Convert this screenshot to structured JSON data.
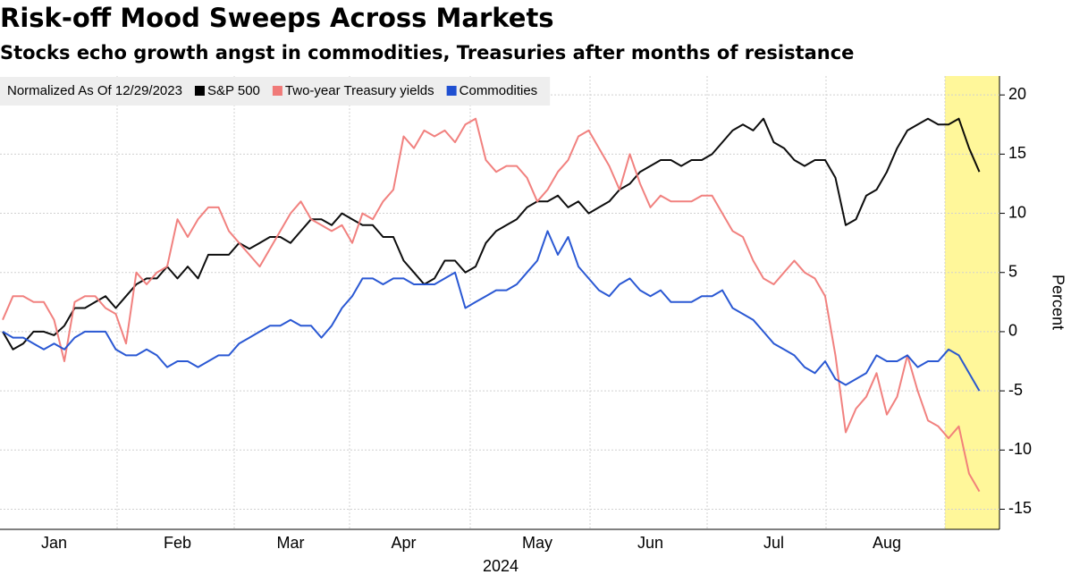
{
  "chart_data": {
    "type": "line",
    "title": "Risk-off Mood Sweeps Across Markets",
    "subtitle": "Stocks echo growth angst in commodities, Treasuries after months of resistance",
    "legend_title": "Normalized As Of 12/29/2023",
    "x_label": "2024",
    "y_label": "Percent",
    "legend": "upper left",
    "grid": true,
    "categories": [
      null,
      null,
      null,
      null,
      null,
      "Jan",
      null,
      null,
      null,
      null,
      null,
      null,
      null,
      null,
      null,
      null,
      null,
      "Feb",
      null,
      null,
      null,
      null,
      null,
      null,
      null,
      null,
      null,
      null,
      "Mar",
      null,
      null,
      null,
      null,
      null,
      null,
      null,
      null,
      null,
      null,
      "Apr",
      null,
      null,
      null,
      null,
      null,
      null,
      null,
      null,
      null,
      null,
      null,
      null,
      "May",
      null,
      null,
      null,
      null,
      null,
      null,
      null,
      null,
      null,
      null,
      "Jun",
      null,
      null,
      null,
      null,
      null,
      null,
      null,
      null,
      null,
      null,
      null,
      "Jul",
      null,
      null,
      null,
      null,
      null,
      null,
      null,
      null,
      null,
      null,
      "Aug",
      null,
      null,
      null,
      null,
      null,
      null,
      null,
      null,
      null
    ],
    "ylim": [
      -16.7,
      21.6
    ],
    "yticks": [
      -15,
      -10,
      -5,
      0,
      5,
      10,
      15,
      20
    ],
    "series": [
      {
        "name": "S&P 500",
        "color": "#000000",
        "values": [
          0,
          -1.5,
          -1,
          0,
          0,
          -0.3,
          0.5,
          2,
          2,
          2.5,
          3,
          2,
          3,
          4,
          4.5,
          4.5,
          5.5,
          4.5,
          5.5,
          4.5,
          6.5,
          6.5,
          6.5,
          7.5,
          7,
          7.5,
          8,
          8,
          7.5,
          8.5,
          9.5,
          9.5,
          9,
          10,
          9.5,
          9,
          9,
          8,
          8,
          6,
          5,
          4,
          4.5,
          6,
          6,
          5,
          5.5,
          7.5,
          8.5,
          9,
          9.5,
          10.5,
          11,
          11,
          11.5,
          10.5,
          11,
          10,
          10.5,
          11,
          12,
          12.5,
          13.5,
          14,
          14.5,
          14.5,
          14,
          14.5,
          14.5,
          15,
          16,
          17,
          17.5,
          17,
          18,
          16,
          15.5,
          14.5,
          14,
          14.5,
          14.5,
          13,
          9,
          9.5,
          11.5,
          12,
          13.5,
          15.5,
          17,
          17.5,
          18,
          17.5,
          17.5,
          18,
          15.5,
          13.5
        ]
      },
      {
        "name": "Two-year Treasury yields",
        "color": "#f07a78",
        "values": [
          1,
          3,
          3,
          2.5,
          2.5,
          1,
          -2.5,
          2.5,
          3,
          3,
          2,
          1.5,
          -1,
          5,
          4,
          5,
          5.5,
          9.5,
          8,
          9.5,
          10.5,
          10.5,
          8.5,
          7.5,
          6.5,
          5.5,
          7,
          8.5,
          10,
          11,
          9.5,
          9,
          8.5,
          9,
          7.5,
          10,
          9.5,
          11,
          12,
          16.5,
          15.5,
          17,
          16.5,
          17,
          16,
          17.5,
          18,
          14.5,
          13.5,
          14,
          14,
          13,
          11,
          12,
          13.5,
          14.5,
          16.5,
          17,
          15.5,
          14,
          12,
          15,
          12.5,
          10.5,
          11.5,
          11,
          11,
          11,
          11.5,
          11.5,
          10,
          8.5,
          8,
          6,
          4.5,
          4,
          5,
          6,
          5,
          4.5,
          3,
          -2,
          -8.5,
          -6.5,
          -5.5,
          -3.5,
          -7,
          -5.5,
          -2,
          -5,
          -7.5,
          -8,
          -9,
          -8,
          -12,
          -13.5
        ]
      },
      {
        "name": "Commodities",
        "color": "#1f4fd1",
        "values": [
          0,
          -0.5,
          -0.5,
          -1,
          -1.5,
          -1,
          -1.5,
          -0.5,
          0,
          0,
          0,
          -1.5,
          -2,
          -2,
          -1.5,
          -2,
          -3,
          -2.5,
          -2.5,
          -3,
          -2.5,
          -2,
          -2,
          -1,
          -0.5,
          0,
          0.5,
          0.5,
          1,
          0.5,
          0.5,
          -0.5,
          0.5,
          2,
          3,
          4.5,
          4.5,
          4,
          4.5,
          4.5,
          4,
          4,
          4,
          4.5,
          5,
          2,
          2.5,
          3,
          3.5,
          3.5,
          4,
          5,
          6,
          8.5,
          6.5,
          8,
          5.5,
          4.5,
          3.5,
          3,
          4,
          4.5,
          3.5,
          3,
          3.5,
          2.5,
          2.5,
          2.5,
          3,
          3,
          3.5,
          2,
          1.5,
          1,
          0,
          -1,
          -1.5,
          -2,
          -3,
          -3.5,
          -2.5,
          -4,
          -4.5,
          -4,
          -3.5,
          -2,
          -2.5,
          -2.5,
          -2,
          -3,
          -2.5,
          -2.5,
          -1.5,
          -2,
          -3.5,
          -5
        ]
      }
    ]
  }
}
